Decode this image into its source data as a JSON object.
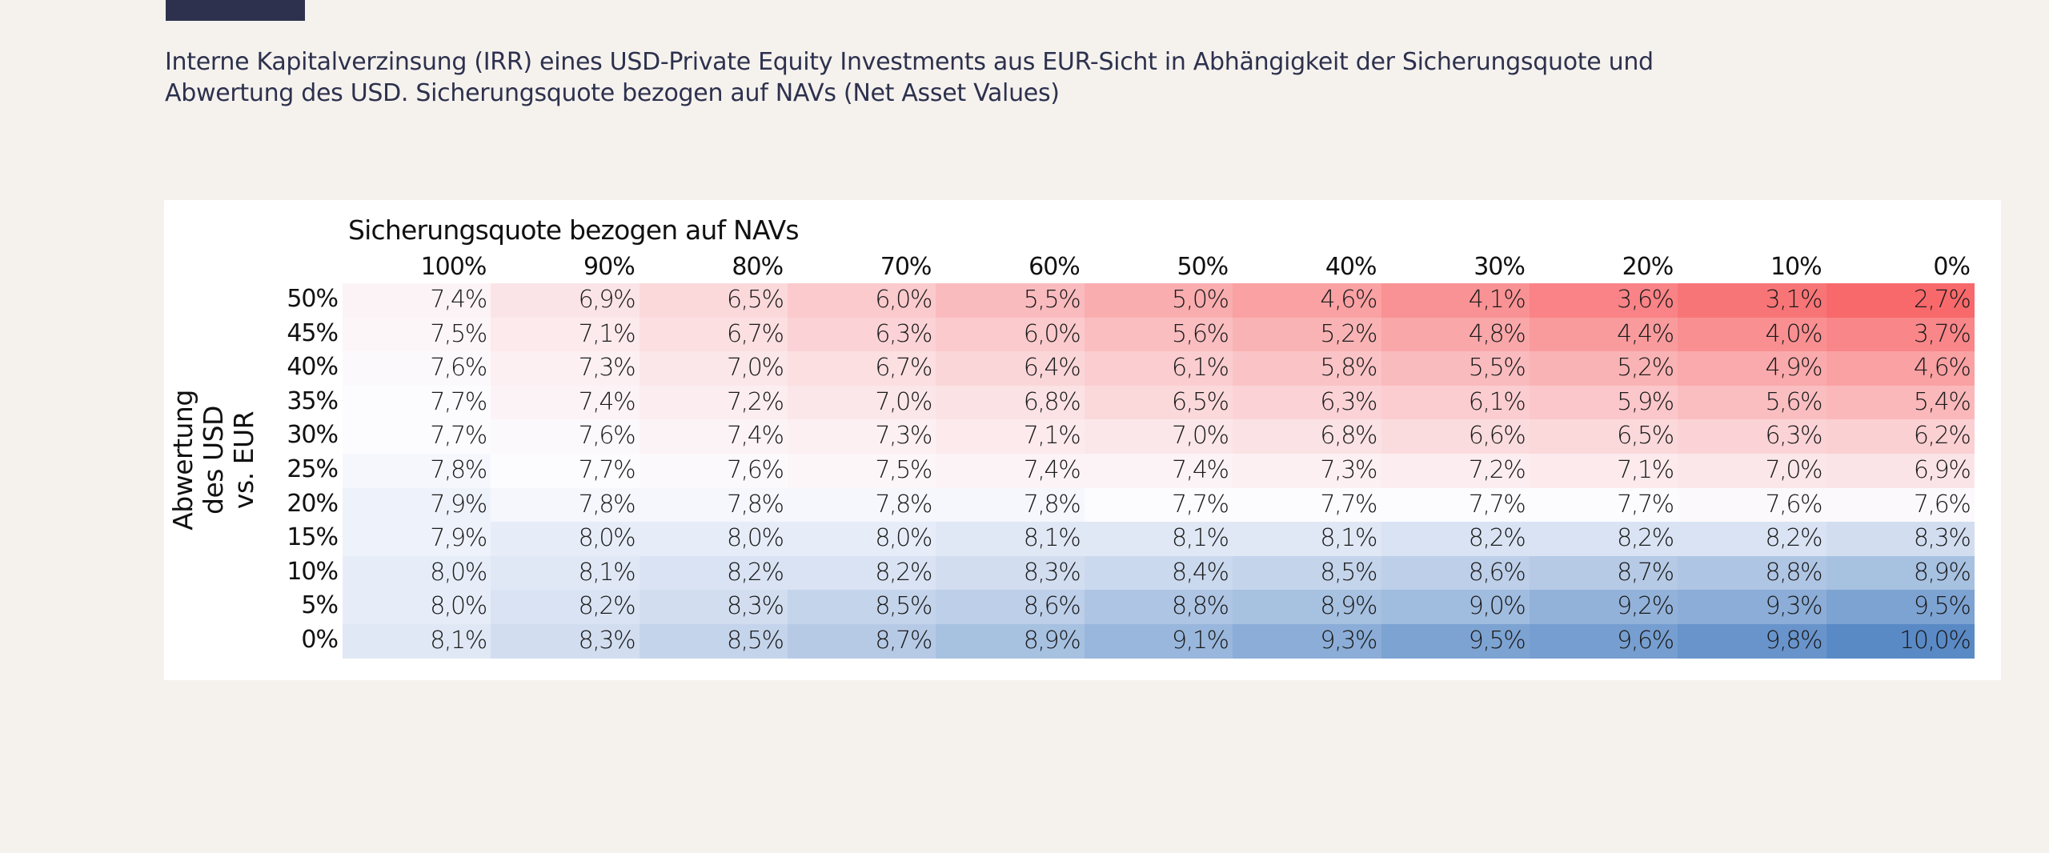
{
  "caption": {
    "line1": "Interne Kapitalverzinsung (IRR) eines USD-Private Equity Investments aus EUR-Sicht in Abhängigkeit der Sicherungsquote und",
    "line2": "Abwertung des USD. Sicherungsquote bezogen auf NAVs (Net Asset Values)"
  },
  "colors": {
    "low": "#F8696B",
    "mid": "#FCFCFF",
    "high": "#5A8AC6",
    "background": "#F5F2EE",
    "accent_bar": "#2D314D"
  },
  "chart_data": {
    "type": "heatmap",
    "title": "Interne Kapitalverzinsung (IRR) eines USD-Private Equity Investments aus EUR-Sicht in Abhängigkeit der Sicherungsquote und Abwertung des USD. Sicherungsquote bezogen auf NAVs (Net Asset Values)",
    "xlabel": "Sicherungsquote bezogen auf NAVs",
    "ylabel": "Abwertung des USD vs. EUR",
    "x": [
      "100%",
      "90%",
      "80%",
      "70%",
      "60%",
      "50%",
      "40%",
      "30%",
      "20%",
      "10%",
      "0%"
    ],
    "y": [
      "50%",
      "45%",
      "40%",
      "35%",
      "30%",
      "25%",
      "20%",
      "15%",
      "10%",
      "5%",
      "0%"
    ],
    "value_format": "percent, comma decimal",
    "color_scale": "red (low) - white - blue (high)",
    "values": [
      [
        7.4,
        6.9,
        6.5,
        6.0,
        5.5,
        5.0,
        4.6,
        4.1,
        3.6,
        3.1,
        2.7
      ],
      [
        7.5,
        7.1,
        6.7,
        6.3,
        6.0,
        5.6,
        5.2,
        4.8,
        4.4,
        4.0,
        3.7
      ],
      [
        7.6,
        7.3,
        7.0,
        6.7,
        6.4,
        6.1,
        5.8,
        5.5,
        5.2,
        4.9,
        4.6
      ],
      [
        7.7,
        7.4,
        7.2,
        7.0,
        6.8,
        6.5,
        6.3,
        6.1,
        5.9,
        5.6,
        5.4
      ],
      [
        7.7,
        7.6,
        7.4,
        7.3,
        7.1,
        7.0,
        6.8,
        6.6,
        6.5,
        6.3,
        6.2
      ],
      [
        7.8,
        7.7,
        7.6,
        7.5,
        7.4,
        7.4,
        7.3,
        7.2,
        7.1,
        7.0,
        6.9
      ],
      [
        7.9,
        7.8,
        7.8,
        7.8,
        7.8,
        7.7,
        7.7,
        7.7,
        7.7,
        7.6,
        7.6
      ],
      [
        7.9,
        8.0,
        8.0,
        8.0,
        8.1,
        8.1,
        8.1,
        8.2,
        8.2,
        8.2,
        8.3
      ],
      [
        8.0,
        8.1,
        8.2,
        8.2,
        8.3,
        8.4,
        8.5,
        8.6,
        8.7,
        8.8,
        8.9
      ],
      [
        8.0,
        8.2,
        8.3,
        8.5,
        8.6,
        8.8,
        8.9,
        9.0,
        9.2,
        9.3,
        9.5
      ],
      [
        8.1,
        8.3,
        8.5,
        8.7,
        8.9,
        9.1,
        9.3,
        9.5,
        9.6,
        9.8,
        10.0
      ]
    ],
    "labels": [
      [
        "7,4%",
        "6,9%",
        "6,5%",
        "6,0%",
        "5,5%",
        "5,0%",
        "4,6%",
        "4,1%",
        "3,6%",
        "3,1%",
        "2,7%"
      ],
      [
        "7,5%",
        "7,1%",
        "6,7%",
        "6,3%",
        "6,0%",
        "5,6%",
        "5,2%",
        "4,8%",
        "4,4%",
        "4,0%",
        "3,7%"
      ],
      [
        "7,6%",
        "7,3%",
        "7,0%",
        "6,7%",
        "6,4%",
        "6,1%",
        "5,8%",
        "5,5%",
        "5,2%",
        "4,9%",
        "4,6%"
      ],
      [
        "7,7%",
        "7,4%",
        "7,2%",
        "7,0%",
        "6,8%",
        "6,5%",
        "6,3%",
        "6,1%",
        "5,9%",
        "5,6%",
        "5,4%"
      ],
      [
        "7,7%",
        "7,6%",
        "7,4%",
        "7,3%",
        "7,1%",
        "7,0%",
        "6,8%",
        "6,6%",
        "6,5%",
        "6,3%",
        "6,2%"
      ],
      [
        "7,8%",
        "7,7%",
        "7,6%",
        "7,5%",
        "7,4%",
        "7,4%",
        "7,3%",
        "7,2%",
        "7,1%",
        "7,0%",
        "6,9%"
      ],
      [
        "7,9%",
        "7,8%",
        "7,8%",
        "7,8%",
        "7,8%",
        "7,7%",
        "7,7%",
        "7,7%",
        "7,7%",
        "7,6%",
        "7,6%"
      ],
      [
        "7,9%",
        "8,0%",
        "8,0%",
        "8,0%",
        "8,1%",
        "8,1%",
        "8,1%",
        "8,2%",
        "8,2%",
        "8,2%",
        "8,3%"
      ],
      [
        "8,0%",
        "8,1%",
        "8,2%",
        "8,2%",
        "8,3%",
        "8,4%",
        "8,5%",
        "8,6%",
        "8,7%",
        "8,8%",
        "8,9%"
      ],
      [
        "8,0%",
        "8,2%",
        "8,3%",
        "8,5%",
        "8,6%",
        "8,8%",
        "8,9%",
        "9,0%",
        "9,2%",
        "9,3%",
        "9,5%"
      ],
      [
        "8,1%",
        "8,3%",
        "8,5%",
        "8,7%",
        "8,9%",
        "9,1%",
        "9,3%",
        "9,5%",
        "9,6%",
        "9,8%",
        "10,0%"
      ]
    ],
    "vmin": 2.7,
    "vmid": 7.7,
    "vmax": 10.0
  }
}
